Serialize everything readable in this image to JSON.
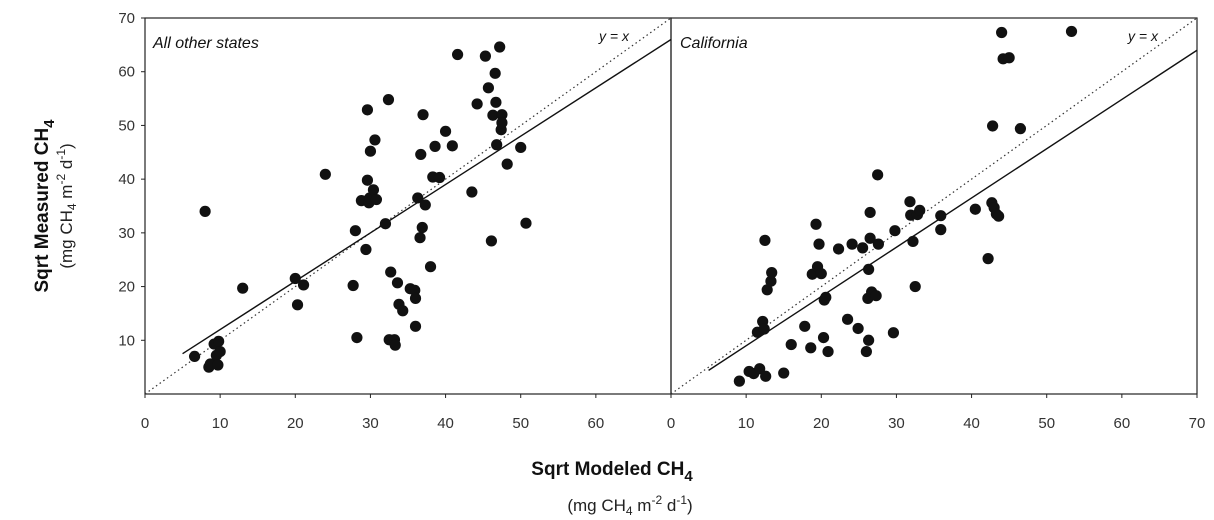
{
  "chart_data": {
    "type": "scatter",
    "xlabel": {
      "main": "Sqrt Modeled CH",
      "sub": "4"
    },
    "ylabel": {
      "main": "Sqrt Measured CH",
      "sub": "4"
    },
    "units": {
      "open": "(mg CH",
      "sub1": "4",
      "mid": " m",
      "sup1": "-2",
      "mid2": " d",
      "sup2": "-1",
      "close": ")"
    },
    "xlim": [
      0,
      70
    ],
    "ylim": [
      0,
      70
    ],
    "xticks": [
      "0",
      "10",
      "20",
      "30",
      "40",
      "50",
      "60",
      "0",
      "10",
      "20",
      "30",
      "40",
      "50",
      "60",
      "70"
    ],
    "yticks": [
      "10",
      "20",
      "30",
      "40",
      "50",
      "60",
      "70"
    ],
    "reference_label": "y = x",
    "panels": [
      {
        "title": "All other states",
        "fit_line": [
          [
            5,
            7.5
          ],
          [
            70,
            66
          ]
        ],
        "points": [
          [
            6.6,
            7.0
          ],
          [
            8.0,
            34.0
          ],
          [
            8.5,
            5.0
          ],
          [
            8.7,
            5.6
          ],
          [
            9.2,
            9.3
          ],
          [
            9.5,
            7.2
          ],
          [
            9.7,
            5.4
          ],
          [
            9.8,
            9.8
          ],
          [
            10.0,
            7.9
          ],
          [
            13.0,
            19.7
          ],
          [
            20.0,
            21.5
          ],
          [
            20.3,
            16.6
          ],
          [
            21.1,
            20.3
          ],
          [
            24.0,
            40.9
          ],
          [
            27.7,
            20.2
          ],
          [
            28.0,
            30.4
          ],
          [
            28.2,
            10.5
          ],
          [
            28.8,
            36.0
          ],
          [
            29.4,
            26.9
          ],
          [
            29.6,
            52.9
          ],
          [
            29.6,
            39.8
          ],
          [
            29.8,
            35.6
          ],
          [
            29.9,
            36.5
          ],
          [
            30.0,
            45.2
          ],
          [
            30.4,
            38.0
          ],
          [
            30.6,
            47.3
          ],
          [
            30.8,
            36.2
          ],
          [
            32.0,
            31.7
          ],
          [
            32.4,
            54.8
          ],
          [
            32.5,
            10.1
          ],
          [
            32.7,
            22.7
          ],
          [
            33.2,
            10.1
          ],
          [
            33.3,
            9.1
          ],
          [
            33.6,
            20.7
          ],
          [
            33.8,
            16.7
          ],
          [
            34.3,
            15.5
          ],
          [
            35.3,
            19.6
          ],
          [
            35.9,
            19.3
          ],
          [
            36.0,
            17.8
          ],
          [
            36.0,
            12.6
          ],
          [
            36.3,
            36.5
          ],
          [
            36.6,
            29.1
          ],
          [
            36.7,
            44.6
          ],
          [
            36.9,
            31.0
          ],
          [
            37.0,
            52.0
          ],
          [
            37.3,
            35.2
          ],
          [
            38.0,
            23.7
          ],
          [
            38.3,
            40.4
          ],
          [
            38.6,
            46.1
          ],
          [
            39.2,
            40.3
          ],
          [
            40.0,
            48.9
          ],
          [
            40.9,
            46.2
          ],
          [
            41.6,
            63.2
          ],
          [
            43.5,
            37.6
          ],
          [
            44.2,
            54.0
          ],
          [
            45.3,
            62.9
          ],
          [
            45.7,
            57.0
          ],
          [
            46.1,
            28.5
          ],
          [
            46.3,
            51.9
          ],
          [
            46.6,
            59.7
          ],
          [
            46.7,
            54.3
          ],
          [
            46.8,
            46.4
          ],
          [
            47.2,
            64.6
          ],
          [
            47.4,
            49.2
          ],
          [
            47.5,
            52.0
          ],
          [
            47.5,
            50.5
          ],
          [
            48.2,
            42.8
          ],
          [
            50.0,
            45.9
          ],
          [
            50.7,
            31.8
          ]
        ]
      },
      {
        "title": "California",
        "fit_line": [
          [
            5,
            4.4
          ],
          [
            70,
            64
          ]
        ],
        "points": [
          [
            9.1,
            2.4
          ],
          [
            10.4,
            4.2
          ],
          [
            11.0,
            3.8
          ],
          [
            11.5,
            11.5
          ],
          [
            11.8,
            4.7
          ],
          [
            12.2,
            13.5
          ],
          [
            12.4,
            12.1
          ],
          [
            12.5,
            28.6
          ],
          [
            12.6,
            3.3
          ],
          [
            12.8,
            19.4
          ],
          [
            13.3,
            21.0
          ],
          [
            13.4,
            22.6
          ],
          [
            15.0,
            3.9
          ],
          [
            16.0,
            9.2
          ],
          [
            17.8,
            12.6
          ],
          [
            18.6,
            8.6
          ],
          [
            18.8,
            22.3
          ],
          [
            19.3,
            31.6
          ],
          [
            19.5,
            23.7
          ],
          [
            19.7,
            27.9
          ],
          [
            20.0,
            22.4
          ],
          [
            20.3,
            10.5
          ],
          [
            20.4,
            17.5
          ],
          [
            20.6,
            18.0
          ],
          [
            20.9,
            7.9
          ],
          [
            22.3,
            27.0
          ],
          [
            23.5,
            13.9
          ],
          [
            24.1,
            27.9
          ],
          [
            24.9,
            12.2
          ],
          [
            25.5,
            27.2
          ],
          [
            26.0,
            7.9
          ],
          [
            26.2,
            17.8
          ],
          [
            26.3,
            10.0
          ],
          [
            26.3,
            23.2
          ],
          [
            26.5,
            33.8
          ],
          [
            26.5,
            29.0
          ],
          [
            26.7,
            19.0
          ],
          [
            27.3,
            18.3
          ],
          [
            27.5,
            40.8
          ],
          [
            27.6,
            27.9
          ],
          [
            29.6,
            11.4
          ],
          [
            29.8,
            30.4
          ],
          [
            31.8,
            35.8
          ],
          [
            31.9,
            33.3
          ],
          [
            32.2,
            28.4
          ],
          [
            32.5,
            20.0
          ],
          [
            32.8,
            33.4
          ],
          [
            33.1,
            34.2
          ],
          [
            35.9,
            33.2
          ],
          [
            35.9,
            30.6
          ],
          [
            40.5,
            34.4
          ],
          [
            42.2,
            25.2
          ],
          [
            42.7,
            35.6
          ],
          [
            42.8,
            49.9
          ],
          [
            43.0,
            34.7
          ],
          [
            43.3,
            33.5
          ],
          [
            43.6,
            33.1
          ],
          [
            44.0,
            67.3
          ],
          [
            44.2,
            62.4
          ],
          [
            45.0,
            62.6
          ],
          [
            46.5,
            49.4
          ],
          [
            53.3,
            67.5
          ]
        ]
      }
    ]
  }
}
